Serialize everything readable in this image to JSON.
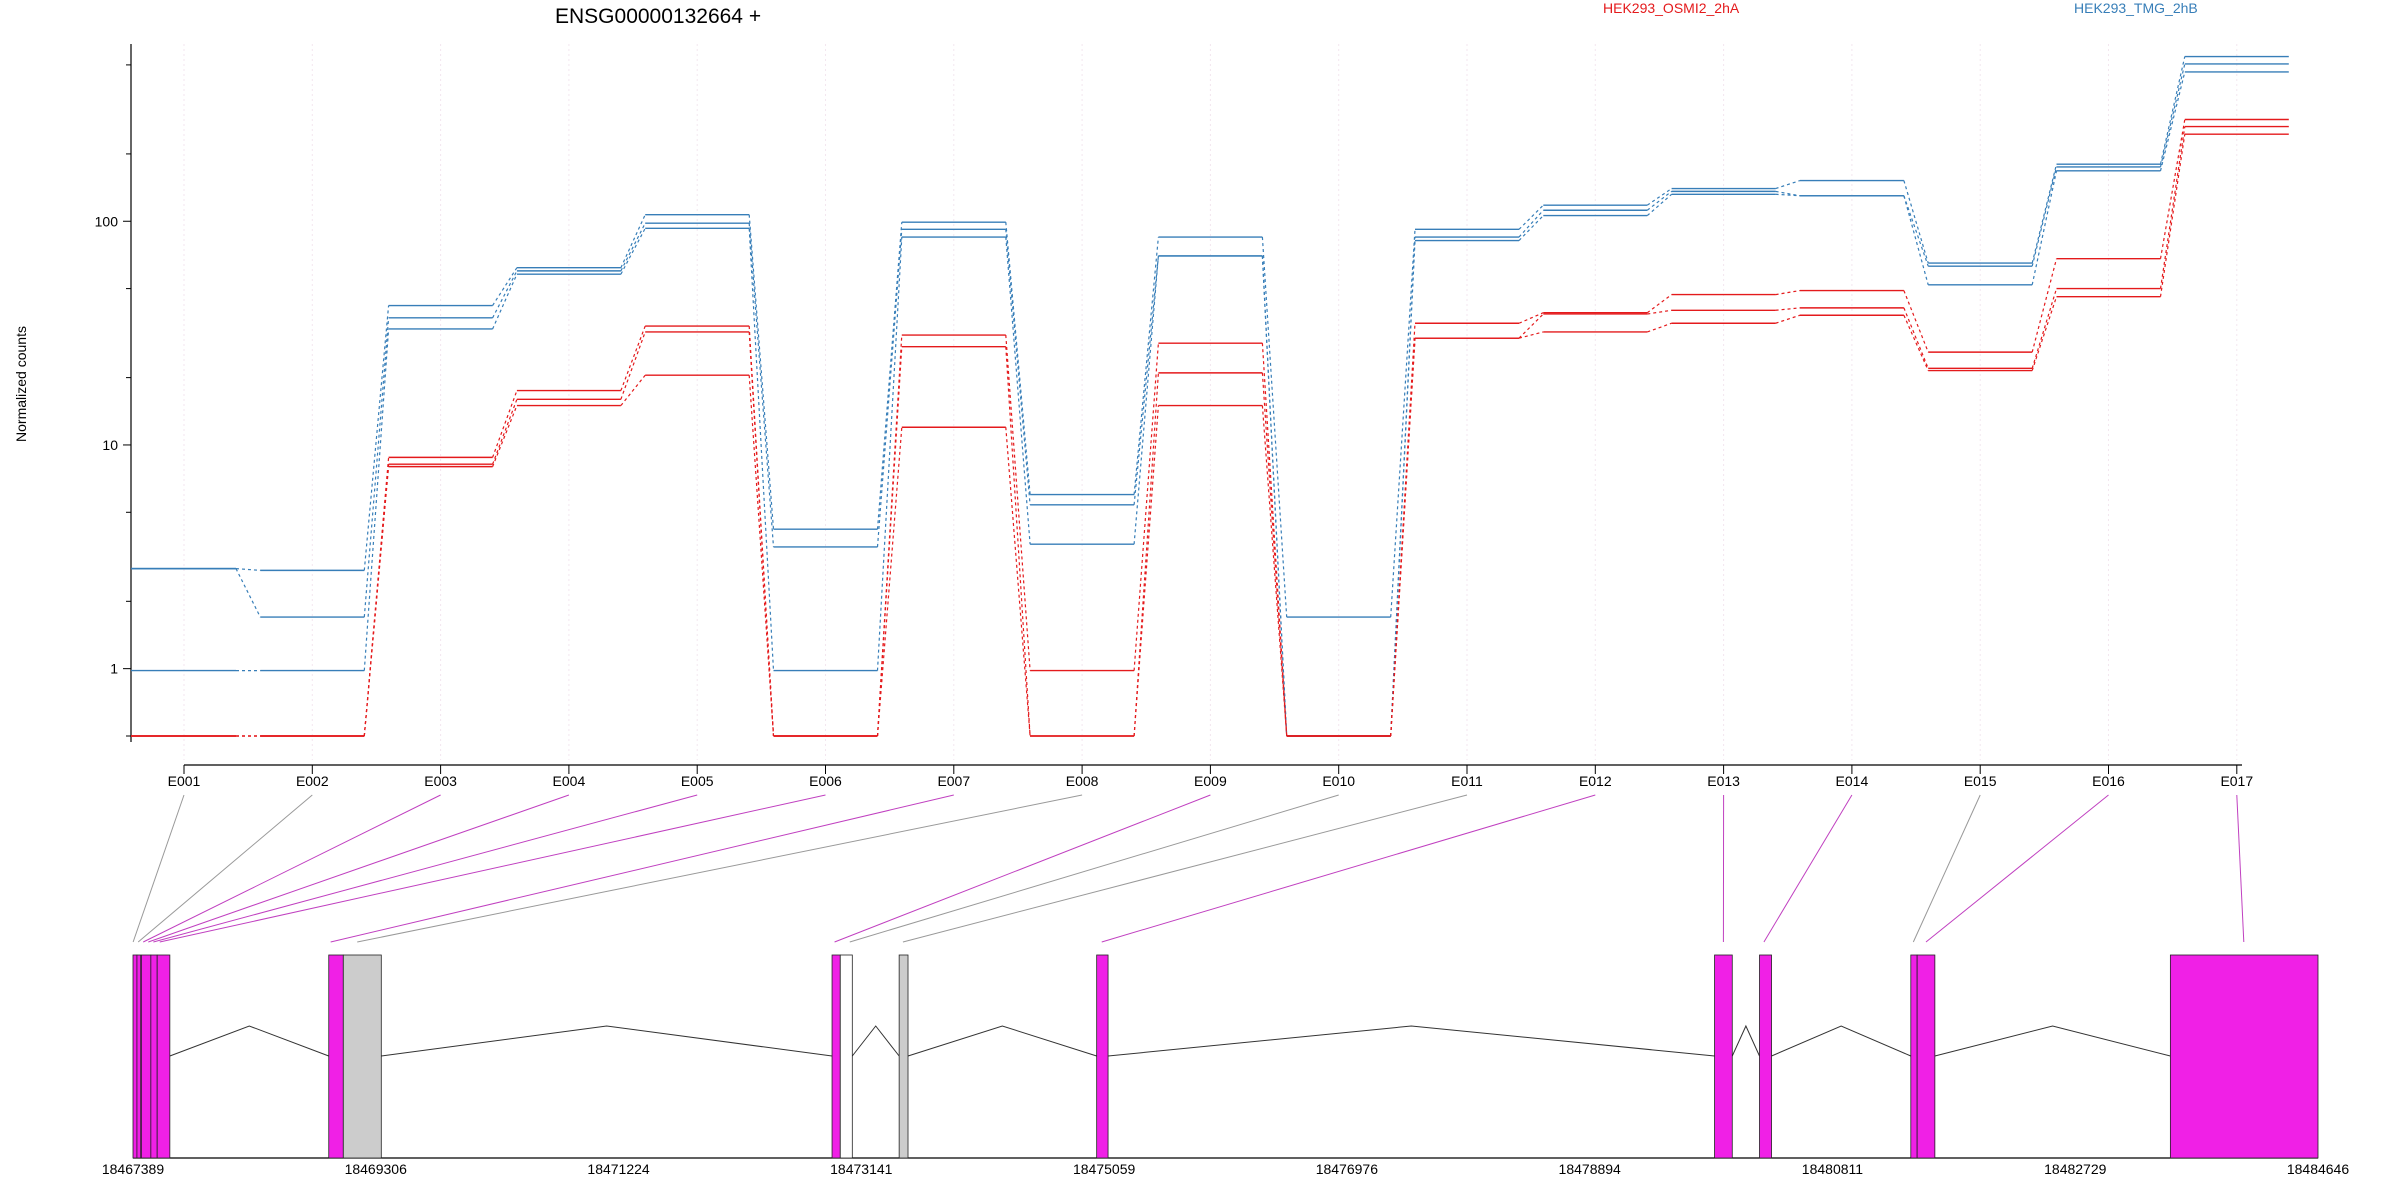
{
  "chart_data": {
    "type": "line",
    "title": "ENSG00000132664 +",
    "ylabel": "Normalized counts",
    "yscale": "log",
    "ylim": [
      0.47,
      620
    ],
    "yticks": [
      {
        "value": 1,
        "label": "1"
      },
      {
        "value": 10,
        "label": "10"
      },
      {
        "value": 100,
        "label": "100"
      }
    ],
    "grid": "vertical dotted",
    "legend": [
      {
        "label": "HEK293_OSMI2_2hA",
        "color": "#e41a1c"
      },
      {
        "label": "HEK293_TMG_2hB",
        "color": "#377eb8"
      }
    ],
    "categories": [
      "E001",
      "E002",
      "E003",
      "E004",
      "E005",
      "E006",
      "E007",
      "E008",
      "E009",
      "E010",
      "E011",
      "E012",
      "E013",
      "E014",
      "E015",
      "E016",
      "E017"
    ],
    "series": [
      {
        "group": "HEK293_TMG_2hB",
        "color": "#377eb8",
        "values": [
          2.8,
          2.75,
          42,
          62,
          107,
          4.2,
          99,
          6,
          85,
          1.7,
          92,
          118,
          140,
          152,
          65,
          180,
          545
        ]
      },
      {
        "group": "HEK293_TMG_2hB",
        "color": "#377eb8",
        "values": [
          2.8,
          1.7,
          37,
          60,
          98,
          3.5,
          92,
          5.4,
          70,
          0.5,
          85,
          112,
          136,
          130,
          63,
          175,
          505
        ]
      },
      {
        "group": "HEK293_TMG_2hB",
        "color": "#377eb8",
        "values": [
          0.98,
          0.98,
          33,
          58,
          93,
          0.98,
          85,
          3.6,
          70,
          0.5,
          82,
          106,
          132,
          130,
          52,
          168,
          465
        ]
      },
      {
        "group": "HEK293_OSMI2_2hA",
        "color": "#e41a1c",
        "values": [
          0.5,
          0.5,
          8.8,
          17.5,
          34,
          0.5,
          31,
          0.98,
          28.5,
          0.5,
          35,
          39,
          47,
          49,
          26,
          68,
          285
        ]
      },
      {
        "group": "HEK293_OSMI2_2hA",
        "color": "#e41a1c",
        "values": [
          0.5,
          0.5,
          8.2,
          16,
          32,
          0.5,
          27.5,
          0.5,
          21,
          0.5,
          30,
          38.5,
          40,
          41,
          22,
          50,
          265
        ]
      },
      {
        "group": "HEK293_OSMI2_2hA",
        "color": "#e41a1c",
        "values": [
          0.5,
          0.5,
          8,
          15,
          20.5,
          0.5,
          12,
          0.5,
          15,
          0.5,
          30,
          32,
          35,
          38,
          21.5,
          46,
          245
        ]
      }
    ],
    "gene_model": {
      "coordinate_range": [
        18467389,
        18484646
      ],
      "tick_labels": [
        "18467389",
        "18469306",
        "18471224",
        "18473141",
        "18475059",
        "18476976",
        "18478894",
        "18480811",
        "18482729",
        "18484646"
      ],
      "tick_values": [
        18467389,
        18469306,
        18471224,
        18473141,
        18475059,
        18476976,
        18478894,
        18480811,
        18482729,
        18484646
      ],
      "colors": {
        "tested_exon": "#f020e6",
        "untested_exon": "#cccccc",
        "tested_link": "#c040c0",
        "untested_link": "#999999"
      },
      "exons": [
        {
          "start": 18467389,
          "end": 18467420,
          "fill": "#f020e6"
        },
        {
          "start": 18467420,
          "end": 18467450,
          "fill": "#f020e6"
        },
        {
          "start": 18467455,
          "end": 18467530,
          "fill": "#f020e6"
        },
        {
          "start": 18467530,
          "end": 18467580,
          "fill": "#f020e6"
        },
        {
          "start": 18467580,
          "end": 18467680,
          "fill": "#f020e6"
        },
        {
          "start": 18468935,
          "end": 18469050,
          "fill": "#f020e6"
        },
        {
          "start": 18469050,
          "end": 18469350,
          "fill": "#cccccc"
        },
        {
          "start": 18472910,
          "end": 18472975,
          "fill": "#f020e6"
        },
        {
          "start": 18472975,
          "end": 18473070,
          "fill": "#ffffff"
        },
        {
          "start": 18473440,
          "end": 18473510,
          "fill": "#cccccc"
        },
        {
          "start": 18475000,
          "end": 18475090,
          "fill": "#f020e6"
        },
        {
          "start": 18479880,
          "end": 18480020,
          "fill": "#f020e6"
        },
        {
          "start": 18480235,
          "end": 18480330,
          "fill": "#f020e6"
        },
        {
          "start": 18481430,
          "end": 18481480,
          "fill": "#f020e6"
        },
        {
          "start": 18481480,
          "end": 18481620,
          "fill": "#f020e6"
        },
        {
          "start": 18483480,
          "end": 18484646,
          "fill": "#f020e6"
        }
      ],
      "exon_links": [
        {
          "exon": "E001",
          "coord": 18467390,
          "tested": false
        },
        {
          "exon": "E002",
          "coord": 18467430,
          "tested": false
        },
        {
          "exon": "E003",
          "coord": 18467470,
          "tested": true
        },
        {
          "exon": "E004",
          "coord": 18467510,
          "tested": true
        },
        {
          "exon": "E005",
          "coord": 18467550,
          "tested": true
        },
        {
          "exon": "E006",
          "coord": 18467600,
          "tested": true
        },
        {
          "exon": "E007",
          "coord": 18468950,
          "tested": true
        },
        {
          "exon": "E008",
          "coord": 18469160,
          "tested": false
        },
        {
          "exon": "E009",
          "coord": 18472930,
          "tested": true
        },
        {
          "exon": "E010",
          "coord": 18473050,
          "tested": false
        },
        {
          "exon": "E011",
          "coord": 18473470,
          "tested": false
        },
        {
          "exon": "E012",
          "coord": 18475040,
          "tested": true
        },
        {
          "exon": "E013",
          "coord": 18479950,
          "tested": true
        },
        {
          "exon": "E014",
          "coord": 18480270,
          "tested": true
        },
        {
          "exon": "E015",
          "coord": 18481450,
          "tested": false
        },
        {
          "exon": "E016",
          "coord": 18481550,
          "tested": true
        },
        {
          "exon": "E017",
          "coord": 18484060,
          "tested": true
        }
      ]
    }
  }
}
